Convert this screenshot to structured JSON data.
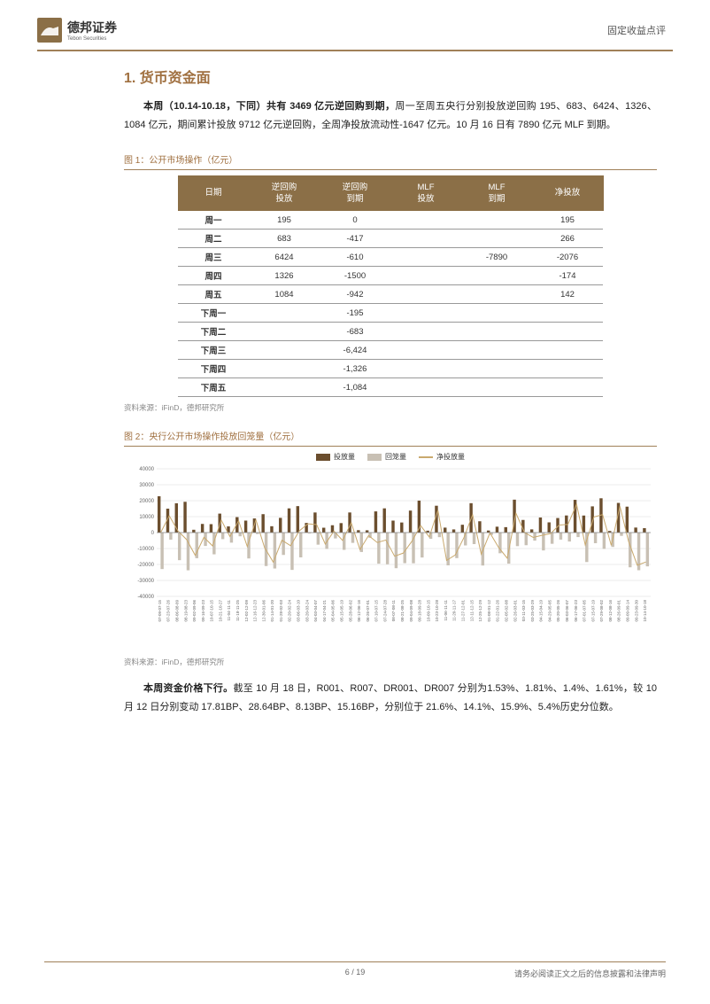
{
  "header": {
    "company_cn": "德邦证券",
    "company_en": "Tebon Securities",
    "doc_type": "固定收益点评"
  },
  "section": {
    "number": "1.",
    "title": "货币资金面"
  },
  "para1": {
    "bold": "本周（10.14-10.18，下同）共有 3469 亿元逆回购到期，",
    "rest": "周一至周五央行分别投放逆回购 195、683、6424、1326、1084 亿元，期间累计投放 9712 亿元逆回购，全周净投放流动性-1647 亿元。10 月 16 日有 7890 亿元 MLF 到期。"
  },
  "fig1": {
    "title": "图 1：公开市场操作（亿元）",
    "source": "资料来源：iFinD，德邦研究所",
    "headers": [
      "日期",
      "逆回购\n投放",
      "逆回购\n到期",
      "MLF\n投放",
      "MLF\n到期",
      "净投放"
    ],
    "rows": [
      [
        "周一",
        "195",
        "0",
        "",
        "",
        "195"
      ],
      [
        "周二",
        "683",
        "-417",
        "",
        "",
        "266"
      ],
      [
        "周三",
        "6424",
        "-610",
        "",
        "-7890",
        "-2076"
      ],
      [
        "周四",
        "1326",
        "-1500",
        "",
        "",
        "-174"
      ],
      [
        "周五",
        "1084",
        "-942",
        "",
        "",
        "142"
      ],
      [
        "下周一",
        "",
        "-195",
        "",
        "",
        ""
      ],
      [
        "下周二",
        "",
        "-683",
        "",
        "",
        ""
      ],
      [
        "下周三",
        "",
        "-6,424",
        "",
        "",
        ""
      ],
      [
        "下周四",
        "",
        "-1,326",
        "",
        "",
        ""
      ],
      [
        "下周五",
        "",
        "-1,084",
        "",
        "",
        ""
      ]
    ]
  },
  "fig2": {
    "title": "图 2：央行公开市场操作投放回笼量（亿元）",
    "source": "资料来源：iFinD，德邦研究所",
    "legend": [
      {
        "label": "投放量",
        "color": "#6b4e2e",
        "type": "box"
      },
      {
        "label": "回笼量",
        "color": "#c8c0b4",
        "type": "box"
      },
      {
        "label": "净投放量",
        "color": "#c9a96e",
        "type": "line"
      }
    ],
    "ylim": [
      -40000,
      40000
    ],
    "ytick_step": 10000,
    "yticks": [
      "-40000",
      "-30000",
      "-20000",
      "-10000",
      "0",
      "10000",
      "20000",
      "30000",
      "40000"
    ],
    "xlabels": [
      "07-09-07-15",
      "07-23-07-26",
      "08-06-08-09",
      "08-19-08-23",
      "09-02-09-06",
      "09-16-09-23",
      "10-07-10-15",
      "10-21-10-27",
      "11-04-11-11",
      "11-18-11-25",
      "12-02-12-09",
      "12-16-12-23",
      "12-30-01-06",
      "01-14-01-20",
      "01-28-02-03",
      "02-20-02-24",
      "03-06-03-10",
      "03-20-03-24",
      "04-03-04-07",
      "04-17-04-21",
      "05-04-05-06",
      "05-15-05-19",
      "05-28-06-02",
      "06-12-06-16",
      "06-26-07-01",
      "07-10-07-15",
      "07-24-07-28",
      "08-07-08-11",
      "08-21-08-25",
      "09-04-09-08",
      "09-18-09-28",
      "10-09-10-15",
      "10-23-10-28",
      "11-06-11-11",
      "11-20-11-17",
      "11-27-12-01",
      "12-11-12-15",
      "12-25-12-29",
      "01-08-01-12",
      "01-22-01-26",
      "02-05-02-08",
      "02-26-03-01",
      "03-11-03-15",
      "03-25-03-29",
      "04-15-04-19",
      "04-29-05-05",
      "05-20-05-26",
      "06-03-06-07",
      "06-17-06-23",
      "07-01-07-05",
      "07-15-07-19",
      "07-29-08-02",
      "08-12-08-16",
      "08-26-09-01",
      "09-09-09-14",
      "09-23-09-30",
      "10-14-10-18"
    ],
    "colors": {
      "pos_bar": "#6b4e2e",
      "neg_bar": "#c8c0b4",
      "net_line": "#c9a96e",
      "grid": "#d8d8d8",
      "axis": "#888888"
    }
  },
  "para2": {
    "bold": "本周资金价格下行。",
    "rest": "截至 10 月 18 日，R001、R007、DR001、DR007 分别为1.53%、1.81%、1.4%、1.61%，较 10 月 12 日分别变动 17.81BP、28.64BP、8.13BP、15.16BP，分别位于 21.6%、14.1%、15.9%、5.4%历史分位数。"
  },
  "footer": {
    "page": "6 / 19",
    "disclaimer": "请务必阅读正文之后的信息披露和法律声明"
  }
}
